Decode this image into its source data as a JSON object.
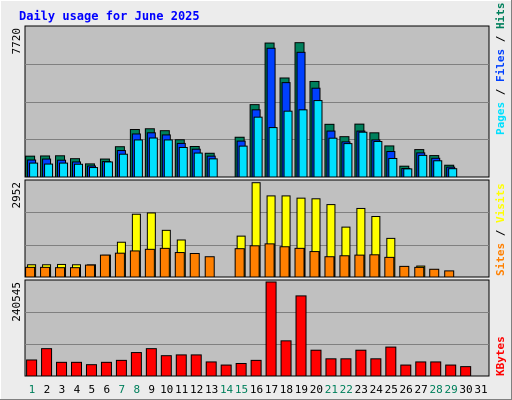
{
  "title": "Daily usage for June 2025",
  "colors": {
    "background": "#ececec",
    "panel": "#c0c0c0",
    "title_text": "#0000ff",
    "hits": "#00805c",
    "files": "#0040ff",
    "pages": "#00e0ff",
    "visits": "#ffff00",
    "sites": "#ff8000",
    "kbytes": "#ff0000",
    "weekend_day": "#00805c",
    "weekday_day": "#000000"
  },
  "chart_data": [
    {
      "type": "bar",
      "panel": "traffic",
      "y_max_label": "7720",
      "ylim": [
        0,
        7720
      ],
      "x": [
        1,
        2,
        3,
        4,
        5,
        6,
        7,
        8,
        9,
        10,
        11,
        12,
        13,
        14,
        15,
        16,
        17,
        18,
        19,
        20,
        21,
        22,
        23,
        24,
        25,
        26,
        27,
        28,
        29,
        30
      ],
      "series": [
        {
          "name": "Hits",
          "values": [
            1080,
            1090,
            1100,
            950,
            680,
            930,
            1570,
            2460,
            2500,
            2400,
            1930,
            1580,
            1230,
            0,
            2060,
            3750,
            6940,
            5130,
            6960,
            4950,
            2730,
            2090,
            2740,
            2290,
            1610,
            560,
            1420,
            1110,
            610,
            0
          ]
        },
        {
          "name": "Files",
          "values": [
            880,
            930,
            870,
            780,
            570,
            800,
            1370,
            2230,
            2290,
            2180,
            1740,
            1440,
            1080,
            0,
            1860,
            3480,
            6670,
            4890,
            6460,
            4600,
            2380,
            1820,
            2380,
            1920,
            1320,
            440,
            1250,
            970,
            510,
            0
          ]
        },
        {
          "name": "Pages",
          "values": [
            720,
            670,
            720,
            660,
            490,
            780,
            1180,
            1920,
            2020,
            1920,
            1530,
            1240,
            940,
            0,
            1600,
            3100,
            2560,
            3410,
            3480,
            3960,
            2010,
            1730,
            2320,
            1840,
            960,
            420,
            1120,
            840,
            430,
            0
          ]
        }
      ],
      "legend": [
        "Pages",
        "Files",
        "Hits"
      ]
    },
    {
      "type": "bar",
      "panel": "visitors",
      "y_max_label": "2952",
      "ylim": [
        0,
        2952
      ],
      "x": [
        1,
        2,
        3,
        4,
        5,
        6,
        7,
        8,
        9,
        10,
        11,
        12,
        13,
        14,
        15,
        16,
        17,
        18,
        19,
        20,
        21,
        22,
        23,
        24,
        25,
        26,
        27,
        28,
        29,
        30
      ],
      "series": [
        {
          "name": "Visits",
          "values": [
            380,
            380,
            390,
            380,
            380,
            680,
            1080,
            1950,
            1990,
            1450,
            1150,
            0,
            0,
            0,
            1270,
            2930,
            2520,
            2520,
            2450,
            2430,
            2250,
            1550,
            2130,
            1880,
            1200,
            0,
            340,
            0,
            0,
            0
          ]
        },
        {
          "name": "Sites",
          "values": [
            300,
            300,
            290,
            290,
            370,
            680,
            740,
            810,
            860,
            890,
            760,
            730,
            630,
            0,
            880,
            970,
            1030,
            940,
            890,
            790,
            630,
            660,
            680,
            690,
            610,
            330,
            300,
            240,
            190,
            0
          ]
        }
      ],
      "legend": [
        "Sites",
        "Visits"
      ]
    },
    {
      "type": "bar",
      "panel": "kbytes",
      "y_max_label": "240545",
      "ylim": [
        0,
        240545
      ],
      "x": [
        1,
        2,
        3,
        4,
        5,
        6,
        7,
        8,
        9,
        10,
        11,
        12,
        13,
        14,
        15,
        16,
        17,
        18,
        19,
        20,
        21,
        22,
        23,
        24,
        25,
        26,
        27,
        28,
        29,
        30
      ],
      "series": [
        {
          "name": "KBytes",
          "values": [
            41000,
            70000,
            35000,
            35000,
            29000,
            35000,
            40000,
            60000,
            70000,
            52000,
            54000,
            54000,
            36000,
            28000,
            32000,
            40000,
            240545,
            90000,
            205000,
            66000,
            44000,
            44000,
            66000,
            44000,
            74000,
            28000,
            36000,
            36000,
            28000,
            24000
          ]
        }
      ],
      "legend": [
        "KBytes"
      ]
    }
  ],
  "x_axis": {
    "labels": [
      "1",
      "2",
      "3",
      "4",
      "5",
      "6",
      "7",
      "8",
      "9",
      "10",
      "11",
      "12",
      "13",
      "14",
      "15",
      "16",
      "17",
      "18",
      "19",
      "20",
      "21",
      "22",
      "23",
      "24",
      "25",
      "26",
      "27",
      "28",
      "29",
      "30",
      "31"
    ],
    "weekend_days": [
      1,
      7,
      8,
      14,
      15,
      21,
      22,
      28,
      29
    ]
  },
  "legend_labels": {
    "pages": "Pages",
    "files": "Files",
    "hits": "Hits",
    "sites": "Sites",
    "visits": "Visits",
    "kbytes": "KBytes",
    "separator": " / "
  }
}
